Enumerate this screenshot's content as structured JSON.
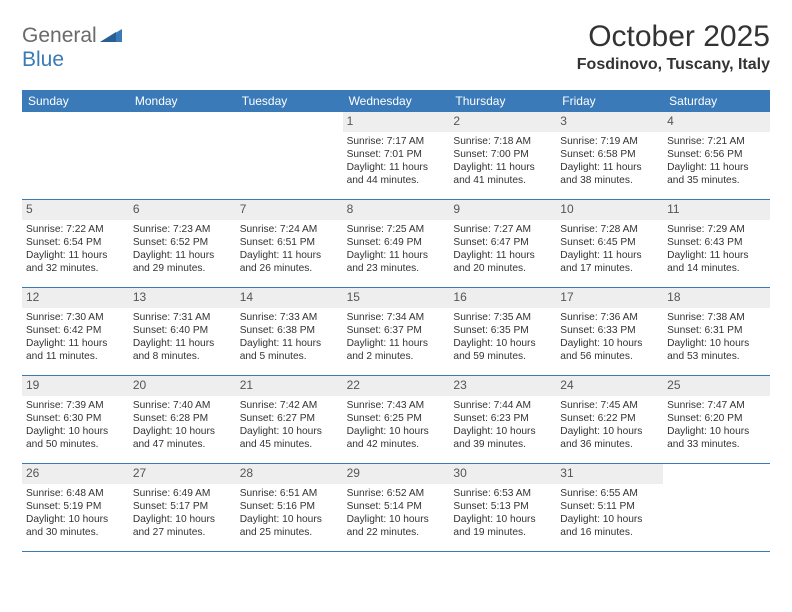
{
  "logo": {
    "general": "General",
    "blue": "Blue"
  },
  "header": {
    "title": "October 2025",
    "location": "Fosdinovo, Tuscany, Italy"
  },
  "colors": {
    "header_bg": "#3a7ab8",
    "daynum_bg": "#eeeeee",
    "text": "#333333"
  },
  "weekdays": [
    "Sunday",
    "Monday",
    "Tuesday",
    "Wednesday",
    "Thursday",
    "Friday",
    "Saturday"
  ],
  "cells": [
    {
      "blank": true
    },
    {
      "blank": true
    },
    {
      "blank": true
    },
    {
      "day": "1",
      "sunrise": "Sunrise: 7:17 AM",
      "sunset": "Sunset: 7:01 PM",
      "d1": "Daylight: 11 hours",
      "d2": "and 44 minutes."
    },
    {
      "day": "2",
      "sunrise": "Sunrise: 7:18 AM",
      "sunset": "Sunset: 7:00 PM",
      "d1": "Daylight: 11 hours",
      "d2": "and 41 minutes."
    },
    {
      "day": "3",
      "sunrise": "Sunrise: 7:19 AM",
      "sunset": "Sunset: 6:58 PM",
      "d1": "Daylight: 11 hours",
      "d2": "and 38 minutes."
    },
    {
      "day": "4",
      "sunrise": "Sunrise: 7:21 AM",
      "sunset": "Sunset: 6:56 PM",
      "d1": "Daylight: 11 hours",
      "d2": "and 35 minutes."
    },
    {
      "day": "5",
      "sunrise": "Sunrise: 7:22 AM",
      "sunset": "Sunset: 6:54 PM",
      "d1": "Daylight: 11 hours",
      "d2": "and 32 minutes."
    },
    {
      "day": "6",
      "sunrise": "Sunrise: 7:23 AM",
      "sunset": "Sunset: 6:52 PM",
      "d1": "Daylight: 11 hours",
      "d2": "and 29 minutes."
    },
    {
      "day": "7",
      "sunrise": "Sunrise: 7:24 AM",
      "sunset": "Sunset: 6:51 PM",
      "d1": "Daylight: 11 hours",
      "d2": "and 26 minutes."
    },
    {
      "day": "8",
      "sunrise": "Sunrise: 7:25 AM",
      "sunset": "Sunset: 6:49 PM",
      "d1": "Daylight: 11 hours",
      "d2": "and 23 minutes."
    },
    {
      "day": "9",
      "sunrise": "Sunrise: 7:27 AM",
      "sunset": "Sunset: 6:47 PM",
      "d1": "Daylight: 11 hours",
      "d2": "and 20 minutes."
    },
    {
      "day": "10",
      "sunrise": "Sunrise: 7:28 AM",
      "sunset": "Sunset: 6:45 PM",
      "d1": "Daylight: 11 hours",
      "d2": "and 17 minutes."
    },
    {
      "day": "11",
      "sunrise": "Sunrise: 7:29 AM",
      "sunset": "Sunset: 6:43 PM",
      "d1": "Daylight: 11 hours",
      "d2": "and 14 minutes."
    },
    {
      "day": "12",
      "sunrise": "Sunrise: 7:30 AM",
      "sunset": "Sunset: 6:42 PM",
      "d1": "Daylight: 11 hours",
      "d2": "and 11 minutes."
    },
    {
      "day": "13",
      "sunrise": "Sunrise: 7:31 AM",
      "sunset": "Sunset: 6:40 PM",
      "d1": "Daylight: 11 hours",
      "d2": "and 8 minutes."
    },
    {
      "day": "14",
      "sunrise": "Sunrise: 7:33 AM",
      "sunset": "Sunset: 6:38 PM",
      "d1": "Daylight: 11 hours",
      "d2": "and 5 minutes."
    },
    {
      "day": "15",
      "sunrise": "Sunrise: 7:34 AM",
      "sunset": "Sunset: 6:37 PM",
      "d1": "Daylight: 11 hours",
      "d2": "and 2 minutes."
    },
    {
      "day": "16",
      "sunrise": "Sunrise: 7:35 AM",
      "sunset": "Sunset: 6:35 PM",
      "d1": "Daylight: 10 hours",
      "d2": "and 59 minutes."
    },
    {
      "day": "17",
      "sunrise": "Sunrise: 7:36 AM",
      "sunset": "Sunset: 6:33 PM",
      "d1": "Daylight: 10 hours",
      "d2": "and 56 minutes."
    },
    {
      "day": "18",
      "sunrise": "Sunrise: 7:38 AM",
      "sunset": "Sunset: 6:31 PM",
      "d1": "Daylight: 10 hours",
      "d2": "and 53 minutes."
    },
    {
      "day": "19",
      "sunrise": "Sunrise: 7:39 AM",
      "sunset": "Sunset: 6:30 PM",
      "d1": "Daylight: 10 hours",
      "d2": "and 50 minutes."
    },
    {
      "day": "20",
      "sunrise": "Sunrise: 7:40 AM",
      "sunset": "Sunset: 6:28 PM",
      "d1": "Daylight: 10 hours",
      "d2": "and 47 minutes."
    },
    {
      "day": "21",
      "sunrise": "Sunrise: 7:42 AM",
      "sunset": "Sunset: 6:27 PM",
      "d1": "Daylight: 10 hours",
      "d2": "and 45 minutes."
    },
    {
      "day": "22",
      "sunrise": "Sunrise: 7:43 AM",
      "sunset": "Sunset: 6:25 PM",
      "d1": "Daylight: 10 hours",
      "d2": "and 42 minutes."
    },
    {
      "day": "23",
      "sunrise": "Sunrise: 7:44 AM",
      "sunset": "Sunset: 6:23 PM",
      "d1": "Daylight: 10 hours",
      "d2": "and 39 minutes."
    },
    {
      "day": "24",
      "sunrise": "Sunrise: 7:45 AM",
      "sunset": "Sunset: 6:22 PM",
      "d1": "Daylight: 10 hours",
      "d2": "and 36 minutes."
    },
    {
      "day": "25",
      "sunrise": "Sunrise: 7:47 AM",
      "sunset": "Sunset: 6:20 PM",
      "d1": "Daylight: 10 hours",
      "d2": "and 33 minutes."
    },
    {
      "day": "26",
      "sunrise": "Sunrise: 6:48 AM",
      "sunset": "Sunset: 5:19 PM",
      "d1": "Daylight: 10 hours",
      "d2": "and 30 minutes."
    },
    {
      "day": "27",
      "sunrise": "Sunrise: 6:49 AM",
      "sunset": "Sunset: 5:17 PM",
      "d1": "Daylight: 10 hours",
      "d2": "and 27 minutes."
    },
    {
      "day": "28",
      "sunrise": "Sunrise: 6:51 AM",
      "sunset": "Sunset: 5:16 PM",
      "d1": "Daylight: 10 hours",
      "d2": "and 25 minutes."
    },
    {
      "day": "29",
      "sunrise": "Sunrise: 6:52 AM",
      "sunset": "Sunset: 5:14 PM",
      "d1": "Daylight: 10 hours",
      "d2": "and 22 minutes."
    },
    {
      "day": "30",
      "sunrise": "Sunrise: 6:53 AM",
      "sunset": "Sunset: 5:13 PM",
      "d1": "Daylight: 10 hours",
      "d2": "and 19 minutes."
    },
    {
      "day": "31",
      "sunrise": "Sunrise: 6:55 AM",
      "sunset": "Sunset: 5:11 PM",
      "d1": "Daylight: 10 hours",
      "d2": "and 16 minutes."
    },
    {
      "blank": true
    }
  ]
}
